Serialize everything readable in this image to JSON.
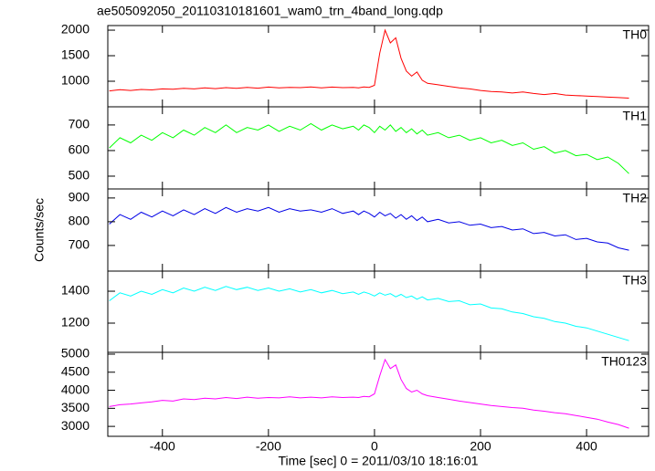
{
  "chart_data": {
    "type": "line",
    "title": "ae505092050_20110310181601_wam0_trn_4band_long.qdp",
    "x_label": "Time [sec] 0 = 2011/03/10 18:16:01",
    "y_label": "Counts/sec",
    "xlim": [
      -503,
      517
    ],
    "xticks": [
      -400,
      -200,
      0,
      200,
      400
    ],
    "x": [
      -500,
      -480,
      -460,
      -440,
      -420,
      -400,
      -380,
      -360,
      -340,
      -320,
      -300,
      -280,
      -260,
      -240,
      -220,
      -200,
      -180,
      -160,
      -140,
      -120,
      -100,
      -80,
      -60,
      -40,
      -30,
      -20,
      -10,
      0,
      10,
      20,
      30,
      40,
      50,
      60,
      70,
      80,
      90,
      100,
      120,
      140,
      160,
      180,
      200,
      220,
      240,
      260,
      280,
      300,
      320,
      340,
      360,
      380,
      400,
      420,
      440,
      460,
      480
    ],
    "series": [
      {
        "name": "TH0",
        "color": "#ff0000",
        "ylim": [
          500,
          2090
        ],
        "yticks": [
          1000,
          1500,
          2000
        ],
        "values": [
          810,
          835,
          820,
          840,
          830,
          850,
          845,
          860,
          850,
          870,
          855,
          875,
          860,
          880,
          865,
          885,
          870,
          880,
          875,
          890,
          870,
          885,
          875,
          880,
          870,
          890,
          880,
          920,
          1550,
          2000,
          1750,
          1850,
          1450,
          1200,
          1100,
          1180,
          1020,
          960,
          930,
          900,
          870,
          850,
          820,
          800,
          790,
          770,
          790,
          760,
          740,
          760,
          730,
          720,
          710,
          700,
          690,
          680,
          670
        ]
      },
      {
        "name": "TH1",
        "color": "#00ff00",
        "ylim": [
          450,
          771
        ],
        "yticks": [
          500,
          600,
          700
        ],
        "values": [
          610,
          650,
          630,
          660,
          640,
          670,
          650,
          680,
          660,
          690,
          670,
          700,
          670,
          690,
          680,
          700,
          675,
          695,
          680,
          705,
          680,
          700,
          685,
          695,
          680,
          700,
          690,
          670,
          695,
          680,
          700,
          675,
          690,
          670,
          685,
          665,
          680,
          660,
          670,
          650,
          660,
          640,
          650,
          630,
          640,
          620,
          630,
          605,
          615,
          590,
          600,
          580,
          585,
          565,
          575,
          550,
          510
        ]
      },
      {
        "name": "TH2",
        "color": "#0000e6",
        "ylim": [
          592,
          938
        ],
        "yticks": [
          700,
          800,
          900
        ],
        "values": [
          790,
          830,
          810,
          840,
          820,
          845,
          825,
          850,
          830,
          855,
          835,
          860,
          840,
          855,
          845,
          860,
          840,
          855,
          845,
          850,
          840,
          855,
          835,
          845,
          830,
          845,
          835,
          820,
          840,
          825,
          835,
          815,
          830,
          810,
          825,
          805,
          820,
          800,
          810,
          795,
          800,
          785,
          790,
          775,
          780,
          765,
          770,
          750,
          755,
          740,
          745,
          725,
          730,
          715,
          710,
          690,
          680
        ]
      },
      {
        "name": "TH3",
        "color": "#00ffff",
        "ylim": [
          1017,
          1526
        ],
        "yticks": [
          1200,
          1400
        ],
        "values": [
          1340,
          1390,
          1370,
          1400,
          1380,
          1410,
          1390,
          1420,
          1400,
          1425,
          1405,
          1430,
          1410,
          1425,
          1405,
          1420,
          1400,
          1415,
          1395,
          1410,
          1390,
          1405,
          1385,
          1395,
          1380,
          1395,
          1385,
          1370,
          1390,
          1375,
          1385,
          1365,
          1380,
          1360,
          1370,
          1350,
          1365,
          1345,
          1355,
          1335,
          1340,
          1315,
          1320,
          1295,
          1290,
          1270,
          1260,
          1240,
          1230,
          1210,
          1200,
          1180,
          1170,
          1150,
          1130,
          1110,
          1090
        ]
      },
      {
        "name": "TH0123",
        "color": "#ff00ff",
        "ylim": [
          2725,
          5050
        ],
        "yticks": [
          3000,
          3500,
          4000,
          4500,
          5000
        ],
        "values": [
          3550,
          3600,
          3620,
          3650,
          3680,
          3720,
          3700,
          3760,
          3740,
          3780,
          3760,
          3800,
          3770,
          3810,
          3780,
          3800,
          3790,
          3820,
          3790,
          3810,
          3790,
          3820,
          3800,
          3810,
          3800,
          3830,
          3820,
          3900,
          4400,
          4850,
          4600,
          4700,
          4300,
          4050,
          3950,
          4000,
          3900,
          3850,
          3800,
          3750,
          3700,
          3660,
          3620,
          3580,
          3550,
          3520,
          3500,
          3450,
          3420,
          3380,
          3350,
          3300,
          3250,
          3200,
          3120,
          3050,
          2950
        ]
      }
    ]
  }
}
